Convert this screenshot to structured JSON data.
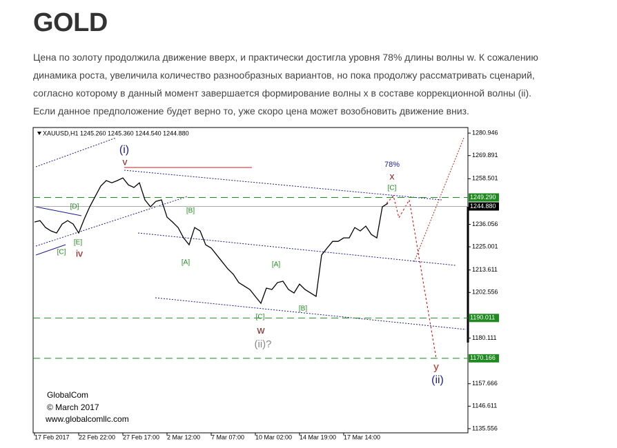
{
  "header": {
    "title": "GOLD"
  },
  "paragraph": {
    "lines": [
      "Цена по золоту продолжила движение вверх, и практически достигла уровня 78% длины волны w. К сожалению",
      "динамика роста, увеличила количество разнообразных вариантов, но пока продолжу рассматривать сценарий,",
      "согласно которому в данный момент завершается формирование волны x в составе коррекционной волны (ii).",
      "Если данное предположение будет верно то, уже скоро цена может возобновить движение вниз."
    ]
  },
  "chart_data": {
    "type": "line",
    "title": "XAUUSD,H1  1245.260 1245.360 1244.540 1244.880",
    "color": "#000000",
    "categories": [
      "17 Feb 2017",
      null,
      null,
      null,
      null,
      null,
      null,
      null,
      "22 Feb 22:00",
      null,
      null,
      null,
      null,
      null,
      null,
      null,
      "27 Feb 17:00",
      null,
      null,
      null,
      null,
      null,
      null,
      null,
      "2 Mar 12:00",
      null,
      null,
      null,
      null,
      null,
      null,
      null,
      "7 Mar 07:00",
      null,
      null,
      null,
      null,
      null,
      null,
      null,
      "10 Mar 02:00",
      null,
      null,
      null,
      null,
      null,
      null,
      null,
      "14 Mar 19:00",
      null,
      null,
      null,
      null,
      null,
      null,
      null,
      "17 Mar 14:00",
      null,
      null,
      null,
      null,
      null,
      null,
      null,
      null
    ],
    "values": [
      1237.2,
      1237.9,
      1234.5,
      1232.8,
      1231.8,
      1236.2,
      1237.9,
      1236.2,
      1231.8,
      1238.6,
      1244.7,
      1249.8,
      1254.9,
      1257.6,
      1256.5,
      1257.6,
      1258.9,
      1255.5,
      1254.2,
      1256.5,
      1248.1,
      1244.7,
      1247.4,
      1248.1,
      1239.6,
      1237.2,
      1234.5,
      1229.4,
      1226.0,
      1234.5,
      1232.8,
      1226.0,
      1224.4,
      1221.0,
      1217.6,
      1214.2,
      1211.5,
      1207.4,
      1205.7,
      1204.0,
      1200.6,
      1197.2,
      1204.7,
      1204.0,
      1207.4,
      1208.1,
      1204.0,
      1202.3,
      1206.7,
      1204.0,
      1202.3,
      1200.6,
      1221.0,
      1224.4,
      1227.7,
      1227.7,
      1229.4,
      1229.4,
      1234.5,
      1232.8,
      1235.2,
      1231.1,
      1229.4,
      1244.7,
      1246.4
    ],
    "ylim": [
      1133.5,
      1283.7
    ],
    "yticks": [
      1280.946,
      1269.891,
      1258.501,
      1236.056,
      1225.001,
      1213.611,
      1202.556,
      1180.111,
      1157.666,
      1146.611,
      1135.556
    ],
    "levels": [
      {
        "value": 1249.29,
        "label": "1249.290",
        "color": "#1f8a1f"
      },
      {
        "value": 1244.88,
        "label": "1244.880",
        "color": "#000000"
      },
      {
        "value": 1190.011,
        "label": "1190.011",
        "color": "#1f8a1f"
      },
      {
        "value": 1170.166,
        "label": "1170.166",
        "color": "#1f8a1f"
      }
    ],
    "annotations": [
      "(i)",
      "v",
      "[D]",
      "[E]",
      "[C]",
      "iv",
      "[B]",
      "[A]",
      "[A]",
      "[B]",
      "[C]",
      "w",
      "(ii)?",
      "78%",
      "x",
      "[C]",
      "y",
      "(ii)",
      "GlobalCom",
      "© March 2017",
      "www.globalcomllc.com"
    ]
  }
}
